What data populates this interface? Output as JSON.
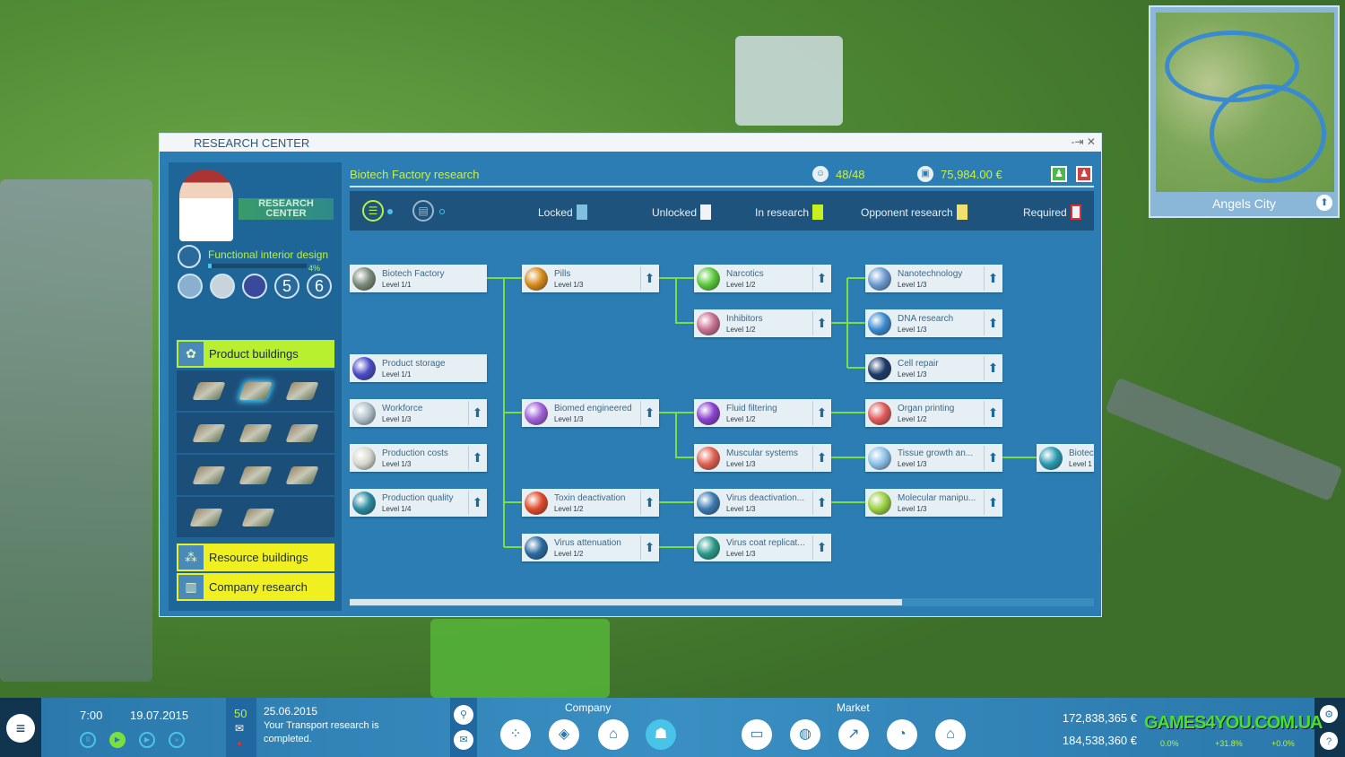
{
  "window": {
    "title": "RESEARCH CENTER",
    "controls": "-⇥ ✕"
  },
  "left_panel": {
    "logo_text": "RESEARCH CENTER",
    "current_research": "Functional interior design",
    "current_progress_label": "4%",
    "current_progress": 4,
    "tech_levels": [
      "5",
      "6"
    ],
    "categories": [
      {
        "label": "Product buildings",
        "icon": "gear-icon",
        "active": true
      },
      {
        "label": "Resource buildings",
        "icon": "network-icon",
        "active": false
      },
      {
        "label": "Company research",
        "icon": "building-icon",
        "active": false
      }
    ]
  },
  "header": {
    "title": "Biotech Factory research",
    "researchers": "48/48",
    "money": "75,984.00 €",
    "player_buttons": [
      "green-player-icon",
      "red-player-icon"
    ]
  },
  "legend": [
    {
      "label": "Locked",
      "color": "#7fc0e0"
    },
    {
      "label": "Unlocked",
      "color": "#f0f4f8"
    },
    {
      "label": "In research",
      "color": "#c8f020"
    },
    {
      "label": "Opponent research",
      "color": "#f0e070"
    },
    {
      "label": "Required",
      "color": "#e03030"
    }
  ],
  "nodes": [
    {
      "name": "Biotech Factory",
      "level": "Level 1/1",
      "upgrade": false,
      "color": "#7a8a7a"
    },
    {
      "name": "Product storage",
      "level": "Level 1/1",
      "upgrade": false,
      "color": "#4a4ac8"
    },
    {
      "name": "Workforce",
      "level": "Level 1/3",
      "upgrade": true,
      "color": "#b0c0c8"
    },
    {
      "name": "Production costs",
      "level": "Level 1/3",
      "upgrade": true,
      "color": "#d8d8d0"
    },
    {
      "name": "Production quality",
      "level": "Level 1/4",
      "upgrade": true,
      "color": "#2a8aa0"
    },
    {
      "name": "Pills",
      "level": "Level 1/3",
      "upgrade": true,
      "color": "#d88a1a"
    },
    {
      "name": "Biomed engineered",
      "level": "Level 1/3",
      "upgrade": true,
      "color": "#a060d8"
    },
    {
      "name": "Toxin deactivation",
      "level": "Level 1/2",
      "upgrade": true,
      "color": "#e04a2a"
    },
    {
      "name": "Virus attenuation",
      "level": "Level 1/2",
      "upgrade": true,
      "color": "#2a6aa0"
    },
    {
      "name": "Narcotics",
      "level": "Level 1/2",
      "upgrade": true,
      "color": "#5ac83a"
    },
    {
      "name": "Inhibitors",
      "level": "Level 1/2",
      "upgrade": true,
      "color": "#c87090"
    },
    {
      "name": "Fluid filtering",
      "level": "Level 1/2",
      "upgrade": true,
      "color": "#8a40d0"
    },
    {
      "name": "Muscular systems",
      "level": "Level 1/3",
      "upgrade": true,
      "color": "#e06050"
    },
    {
      "name": "Virus deactivation...",
      "level": "Level 1/3",
      "upgrade": true,
      "color": "#3a7ab0"
    },
    {
      "name": "Virus coat replicat...",
      "level": "Level 1/3",
      "upgrade": true,
      "color": "#2a9a8a"
    },
    {
      "name": "Nanotechnology",
      "level": "Level 1/3",
      "upgrade": true,
      "color": "#6a9ad0"
    },
    {
      "name": "DNA research",
      "level": "Level 1/3",
      "upgrade": true,
      "color": "#3a8ad0"
    },
    {
      "name": "Cell repair",
      "level": "Level 1/3",
      "upgrade": true,
      "color": "#1a3a6a"
    },
    {
      "name": "Organ printing",
      "level": "Level 1/2",
      "upgrade": true,
      "color": "#e05a5a"
    },
    {
      "name": "Tissue growth an...",
      "level": "Level 1/3",
      "upgrade": true,
      "color": "#8ac0e8"
    },
    {
      "name": "Molecular manipu...",
      "level": "Level 1/3",
      "upgrade": true,
      "color": "#9ad040"
    },
    {
      "name": "Biotec",
      "level": "Level 1",
      "upgrade": false,
      "color": "#2a9ab0"
    }
  ],
  "minimap": {
    "city": "Angels City"
  },
  "bottom_bar": {
    "time": "7:00",
    "date": "19.07.2015",
    "message_count": "50",
    "message_date": "25.06.2015",
    "message_text": "Your Transport research is completed.",
    "company_label": "Company",
    "market_label": "Market",
    "money_1": "172,838,365 €",
    "money_2": "184,538,360 €",
    "pct_1": "0.0%",
    "pct_2": "+31.8%",
    "pct_3": "+0.0%"
  },
  "watermark": "GAMES4YOU.COM.UA"
}
